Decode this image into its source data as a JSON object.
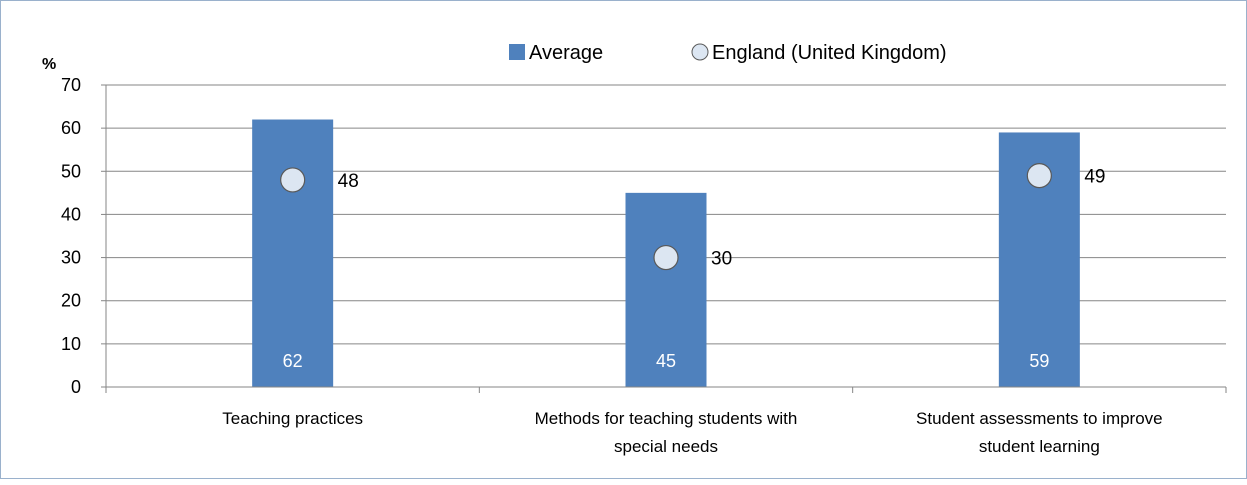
{
  "chart_data": {
    "type": "bar",
    "ylabel": "%",
    "ylim": [
      0,
      70
    ],
    "yticks": [
      0,
      10,
      20,
      30,
      40,
      50,
      60,
      70
    ],
    "grid": true,
    "legend_position": "top-center",
    "categories": [
      [
        "Teaching practices"
      ],
      [
        "Methods for teaching students with",
        "special needs"
      ],
      [
        "Student assessments to improve",
        "student learning"
      ]
    ],
    "series": [
      {
        "name": "Average",
        "marker": "bar",
        "color": "#4f81bd",
        "values": [
          62,
          45,
          59
        ]
      },
      {
        "name": "England (United Kingdom)",
        "marker": "circle",
        "color": "#dce6f2",
        "values": [
          48,
          30,
          49
        ]
      }
    ]
  }
}
